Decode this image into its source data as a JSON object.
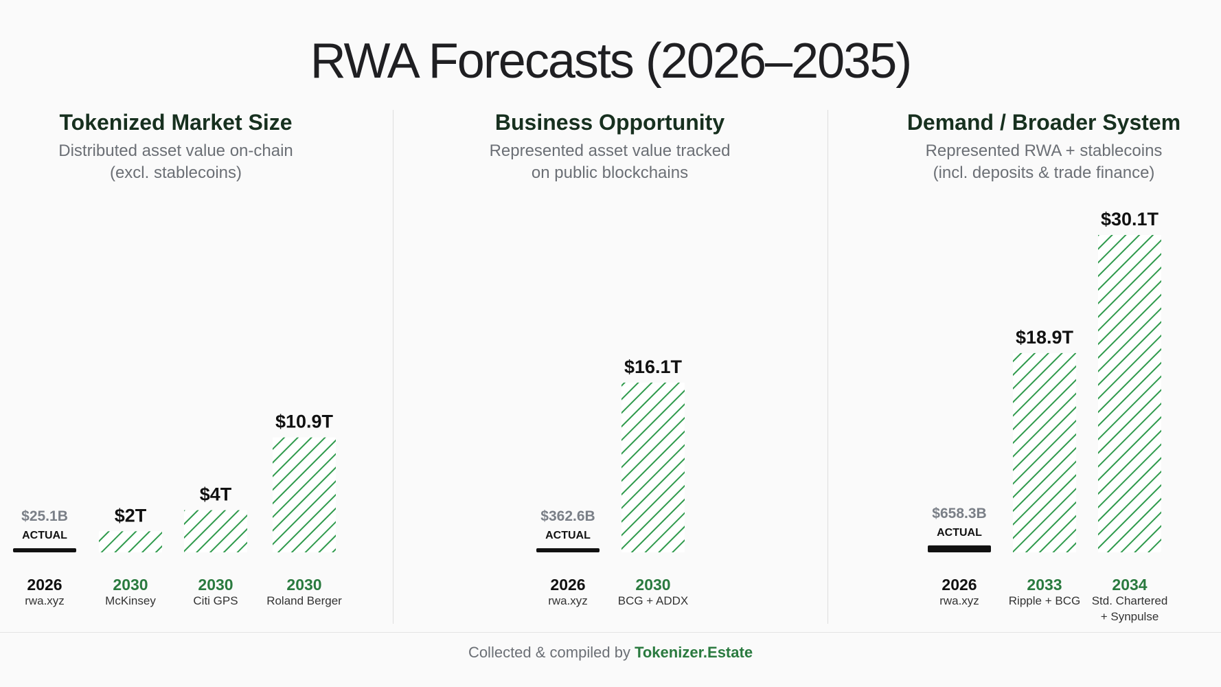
{
  "title": "RWA Forecasts (2026–2035)",
  "colors": {
    "forecast": "#2f9a4c",
    "actual": "#111111",
    "actual_value": "#7a7f87",
    "year_forecast": "#2a7a3f"
  },
  "footer": {
    "prefix": "Collected & compiled by ",
    "brand": "Tokenizer.Estate"
  },
  "chart_data": [
    {
      "type": "bar",
      "title": "Tokenized Market Size",
      "subtitle": [
        "Distributed asset value on-chain",
        "(excl. stablecoins)"
      ],
      "unit": "USD trillions",
      "ylim": [
        0,
        30.1
      ],
      "bars": [
        {
          "value": 0.0251,
          "label": "$25.1B",
          "year": "2026",
          "source": [
            "rwa.xyz"
          ],
          "actual": true,
          "tag": "ACTUAL"
        },
        {
          "value": 2,
          "label": "$2T",
          "year": "2030",
          "source": [
            "McKinsey"
          ],
          "actual": false
        },
        {
          "value": 4,
          "label": "$4T",
          "year": "2030",
          "source": [
            "Citi GPS"
          ],
          "actual": false
        },
        {
          "value": 10.9,
          "label": "$10.9T",
          "year": "2030",
          "source": [
            "Roland Berger"
          ],
          "actual": false
        }
      ]
    },
    {
      "type": "bar",
      "title": "Business Opportunity",
      "subtitle": [
        "Represented asset value tracked",
        "on public blockchains"
      ],
      "unit": "USD trillions",
      "ylim": [
        0,
        30.1
      ],
      "bars": [
        {
          "value": 0.3626,
          "label": "$362.6B",
          "year": "2026",
          "source": [
            "rwa.xyz"
          ],
          "actual": true,
          "tag": "ACTUAL"
        },
        {
          "value": 16.1,
          "label": "$16.1T",
          "year": "2030",
          "source": [
            "BCG + ADDX"
          ],
          "actual": false
        }
      ]
    },
    {
      "type": "bar",
      "title": "Demand / Broader System",
      "subtitle": [
        "Represented RWA + stablecoins",
        "(incl. deposits & trade finance)"
      ],
      "unit": "USD trillions",
      "ylim": [
        0,
        30.1
      ],
      "bars": [
        {
          "value": 0.6583,
          "label": "$658.3B",
          "year": "2026",
          "source": [
            "rwa.xyz"
          ],
          "actual": true,
          "tag": "ACTUAL"
        },
        {
          "value": 18.9,
          "label": "$18.9T",
          "year": "2033",
          "source": [
            "Ripple + BCG"
          ],
          "actual": false
        },
        {
          "value": 30.1,
          "label": "$30.1T",
          "year": "2034",
          "source": [
            "Std. Chartered",
            "+ Synpulse"
          ],
          "actual": false
        }
      ]
    }
  ]
}
